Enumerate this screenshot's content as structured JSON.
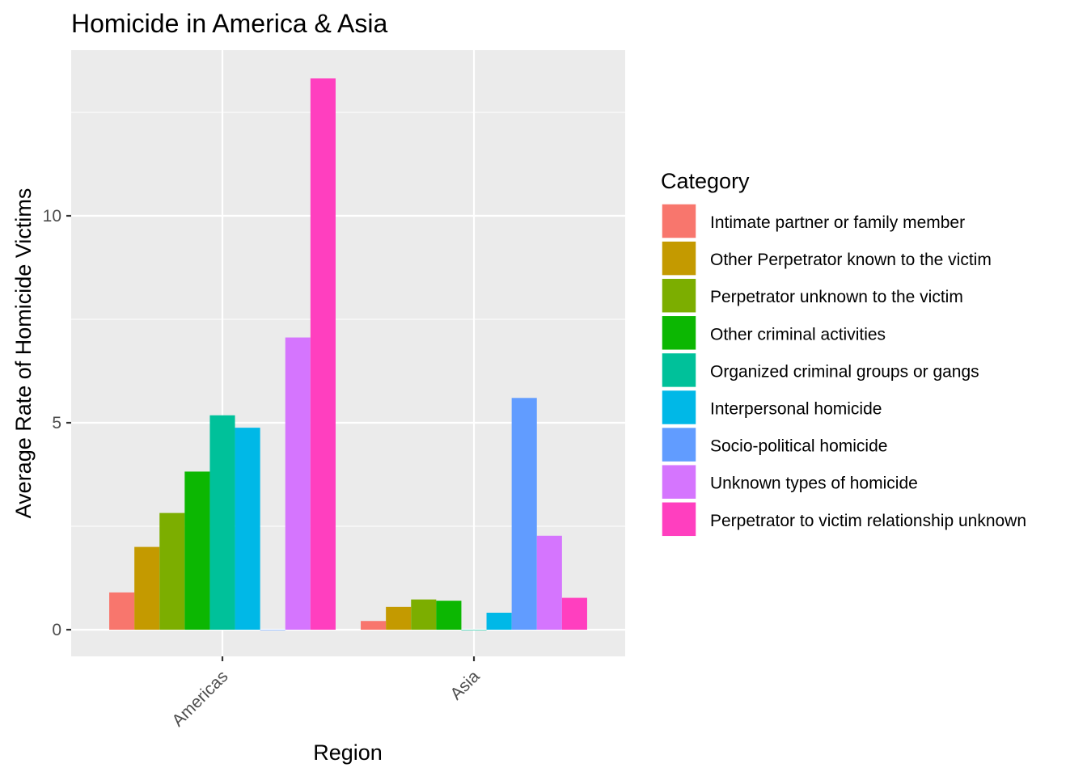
{
  "chart_data": {
    "type": "bar",
    "title": "Homicide in America & Asia",
    "xlabel": "Region",
    "ylabel": "Average Rate of Homicide Victims",
    "categories": [
      "Americas",
      "Asia"
    ],
    "yticks": [
      0,
      5,
      10
    ],
    "ylim": [
      -0.65,
      14.05
    ],
    "grid": true,
    "legend": {
      "title": "Category",
      "placement": "right"
    },
    "series": [
      {
        "name": "Intimate partner or family member",
        "color": "#F8766D",
        "values": [
          0.9,
          0.21
        ]
      },
      {
        "name": "Other Perpetrator known to the victim",
        "color": "#C49A00",
        "values": [
          2.0,
          0.55
        ]
      },
      {
        "name": "Perpetrator unknown to the victim",
        "color": "#7CAE00",
        "values": [
          2.82,
          0.73
        ]
      },
      {
        "name": "Other criminal activities",
        "color": "#0CB702",
        "values": [
          3.82,
          0.7
        ]
      },
      {
        "name": "Organized criminal groups or gangs",
        "color": "#00C19A",
        "values": [
          5.18,
          0.0
        ]
      },
      {
        "name": "Interpersonal homicide",
        "color": "#00B8E7",
        "values": [
          4.88,
          0.41
        ]
      },
      {
        "name": "Socio-political homicide",
        "color": "#619CFF",
        "values": [
          0.0,
          5.6
        ]
      },
      {
        "name": "Unknown types of homicide",
        "color": "#D575FE",
        "values": [
          7.06,
          2.27
        ]
      },
      {
        "name": "Perpetrator to victim relationship unknown",
        "color": "#FF3FBF",
        "values": [
          13.32,
          0.77
        ]
      }
    ]
  }
}
